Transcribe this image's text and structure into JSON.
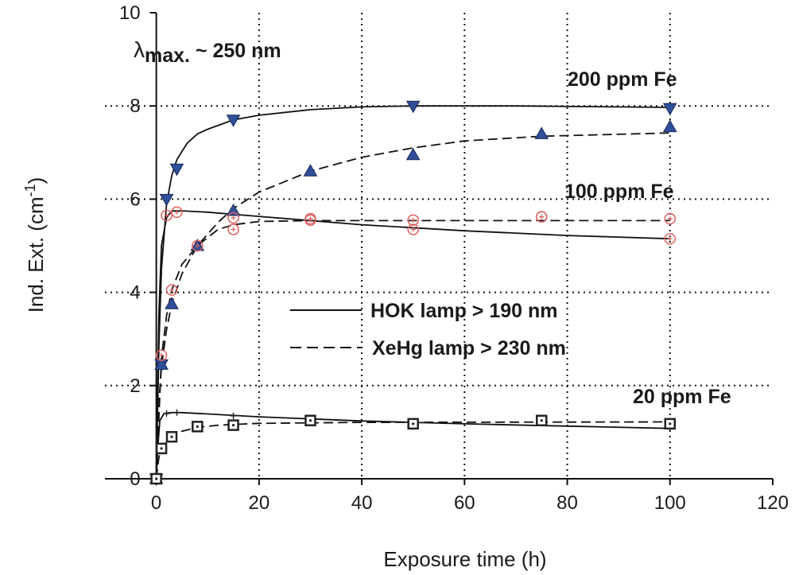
{
  "chart_data": {
    "type": "scatter",
    "title": "",
    "xlabel": "Exposure time (h)",
    "ylabel": {
      "main": "Ind. Ext. (cm",
      "sup": "-1",
      "close": ")"
    },
    "xlim": [
      -10,
      120
    ],
    "ylim": [
      0,
      10
    ],
    "xticks": [
      "0",
      "20",
      "40",
      "60",
      "80",
      "100",
      "120"
    ],
    "yticks": [
      "0",
      "2",
      "4",
      "6",
      "8",
      "10"
    ],
    "grid": true,
    "annotations": [
      {
        "id": "lambda",
        "prefix": "λ",
        "sub": "max.",
        "rest": " ~ 250 nm",
        "x": -4,
        "y": 9.1
      },
      {
        "id": "fe200",
        "text": "200 ppm Fe",
        "x": 80,
        "y": 8.5
      },
      {
        "id": "fe100",
        "text": "100 ppm Fe",
        "x": 79,
        "y": 6.0
      },
      {
        "id": "fe20",
        "text": "20 ppm Fe",
        "x": 84,
        "y": 1.75
      }
    ],
    "legend": {
      "position": "center",
      "entries": [
        {
          "label": "HOK lamp > 190 nm",
          "style": "solid"
        },
        {
          "label": "XeHg lamp > 230 nm",
          "style": "dashed"
        }
      ]
    },
    "series": [
      {
        "group": "200 ppm Fe",
        "lamp": "HOK lamp > 190 nm",
        "marker": "triangle-down",
        "color": "#2f4f9a",
        "points": [
          [
            0,
            0
          ],
          [
            1,
            2.45
          ],
          [
            2,
            6.0
          ],
          [
            4,
            6.65
          ],
          [
            15,
            7.7
          ],
          [
            50,
            8.0
          ],
          [
            100,
            7.95
          ]
        ],
        "fit": [
          [
            0,
            0
          ],
          [
            0.5,
            2.8
          ],
          [
            1,
            4.5
          ],
          [
            2,
            5.9
          ],
          [
            3,
            6.5
          ],
          [
            4,
            6.85
          ],
          [
            6,
            7.2
          ],
          [
            8,
            7.4
          ],
          [
            10,
            7.5
          ],
          [
            15,
            7.7
          ],
          [
            20,
            7.8
          ],
          [
            30,
            7.92
          ],
          [
            40,
            7.98
          ],
          [
            50,
            8.0
          ],
          [
            70,
            8.0
          ],
          [
            100,
            7.97
          ]
        ]
      },
      {
        "group": "200 ppm Fe",
        "lamp": "XeHg lamp > 230 nm",
        "marker": "triangle-up",
        "color": "#2f4f9a",
        "points": [
          [
            0,
            0
          ],
          [
            1,
            2.45
          ],
          [
            3,
            3.75
          ],
          [
            8,
            5.0
          ],
          [
            15,
            5.75
          ],
          [
            30,
            6.6
          ],
          [
            50,
            6.95
          ],
          [
            75,
            7.4
          ],
          [
            100,
            7.55
          ]
        ],
        "fit": [
          [
            0,
            0
          ],
          [
            0.5,
            1.6
          ],
          [
            1,
            2.4
          ],
          [
            2,
            3.2
          ],
          [
            3,
            3.75
          ],
          [
            5,
            4.4
          ],
          [
            8,
            5.0
          ],
          [
            12,
            5.5
          ],
          [
            15,
            5.8
          ],
          [
            20,
            6.15
          ],
          [
            30,
            6.6
          ],
          [
            40,
            6.9
          ],
          [
            50,
            7.1
          ],
          [
            60,
            7.25
          ],
          [
            75,
            7.35
          ],
          [
            100,
            7.42
          ]
        ]
      },
      {
        "group": "100 ppm Fe",
        "lamp": "HOK lamp > 190 nm",
        "marker": "circle-plus",
        "color": "#e06060",
        "points": [
          [
            1,
            2.65
          ],
          [
            2,
            5.65
          ],
          [
            4,
            5.72
          ],
          [
            15,
            5.35
          ],
          [
            30,
            5.58
          ],
          [
            50,
            5.35
          ],
          [
            75,
            5.62
          ],
          [
            100,
            5.15
          ]
        ],
        "fit": [
          [
            0,
            0
          ],
          [
            0.5,
            3.5
          ],
          [
            1,
            5.0
          ],
          [
            2,
            5.6
          ],
          [
            3,
            5.75
          ],
          [
            5,
            5.75
          ],
          [
            10,
            5.72
          ],
          [
            20,
            5.63
          ],
          [
            40,
            5.45
          ],
          [
            60,
            5.32
          ],
          [
            80,
            5.22
          ],
          [
            100,
            5.15
          ]
        ]
      },
      {
        "group": "100 ppm Fe",
        "lamp": "XeHg lamp > 230 nm",
        "marker": "circle-plus",
        "color": "#e06060",
        "points": [
          [
            3,
            4.05
          ],
          [
            8,
            5.0
          ],
          [
            15,
            5.6
          ],
          [
            30,
            5.55
          ],
          [
            50,
            5.55
          ],
          [
            75,
            5.62
          ],
          [
            100,
            5.58
          ]
        ],
        "fit": [
          [
            0,
            0
          ],
          [
            1,
            2.6
          ],
          [
            2,
            3.5
          ],
          [
            3,
            4.05
          ],
          [
            5,
            4.6
          ],
          [
            8,
            5.0
          ],
          [
            12,
            5.35
          ],
          [
            15,
            5.45
          ],
          [
            20,
            5.52
          ],
          [
            30,
            5.54
          ],
          [
            50,
            5.54
          ],
          [
            100,
            5.54
          ]
        ]
      },
      {
        "group": "20 ppm Fe",
        "lamp": "HOK lamp > 190 nm",
        "marker": "plus",
        "color": "#222222",
        "points": [
          [
            2,
            1.4
          ],
          [
            4,
            1.42
          ],
          [
            15,
            1.35
          ],
          [
            30,
            1.26
          ],
          [
            50,
            1.2
          ],
          [
            100,
            1.1
          ]
        ],
        "fit": [
          [
            0,
            0
          ],
          [
            0.3,
            0.7
          ],
          [
            0.7,
            1.25
          ],
          [
            1.5,
            1.4
          ],
          [
            3,
            1.42
          ],
          [
            5,
            1.42
          ],
          [
            10,
            1.39
          ],
          [
            20,
            1.33
          ],
          [
            40,
            1.24
          ],
          [
            60,
            1.18
          ],
          [
            80,
            1.13
          ],
          [
            100,
            1.08
          ]
        ]
      },
      {
        "group": "20 ppm Fe",
        "lamp": "XeHg lamp > 230 nm",
        "marker": "square",
        "color": "#222222",
        "points": [
          [
            0,
            0
          ],
          [
            1,
            0.65
          ],
          [
            3,
            0.9
          ],
          [
            8,
            1.12
          ],
          [
            15,
            1.15
          ],
          [
            30,
            1.25
          ],
          [
            50,
            1.18
          ],
          [
            75,
            1.25
          ],
          [
            100,
            1.18
          ]
        ],
        "fit": [
          [
            0,
            0
          ],
          [
            0.5,
            0.45
          ],
          [
            1,
            0.65
          ],
          [
            2,
            0.8
          ],
          [
            3,
            0.9
          ],
          [
            5,
            1.02
          ],
          [
            8,
            1.1
          ],
          [
            12,
            1.15
          ],
          [
            20,
            1.19
          ],
          [
            40,
            1.21
          ],
          [
            100,
            1.22
          ]
        ]
      }
    ]
  }
}
